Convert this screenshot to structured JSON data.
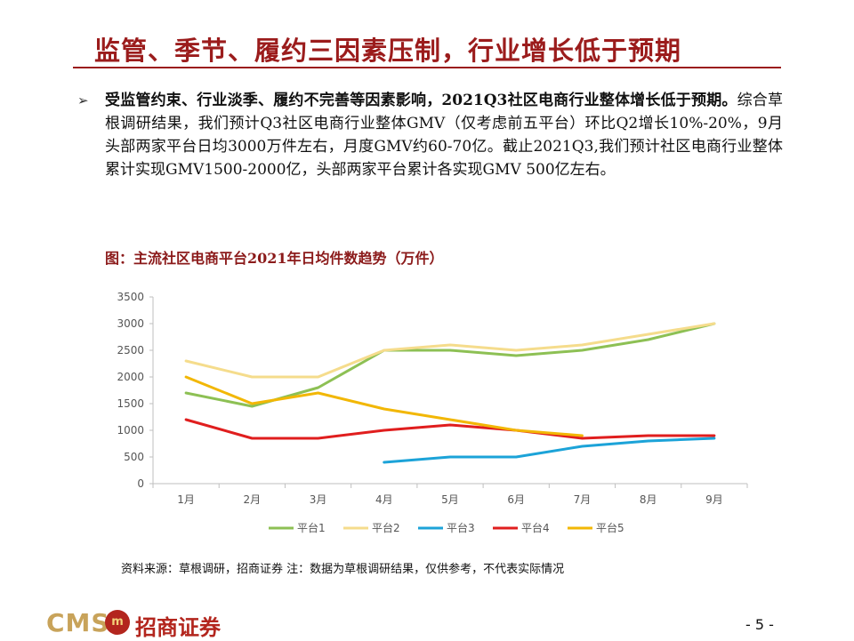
{
  "slide": {
    "title": "监管、季节、履约三因素压制，行业增长低于预期",
    "bullet_bold": "受监管约束、行业淡季、履约不完善等因素影响，2021Q3社区电商行业整体增长低于预期。",
    "bullet_rest": "综合草根调研结果，我们预计Q3社区电商行业整体GMV（仅考虑前五平台）环比Q2增长10%-20%，9月头部两家平台日均3000万件左右，月度GMV约60-70亿。截止2021Q3,我们预计社区电商行业整体累计实现GMV1500-2000亿，头部两家平台累计各实现GMV 500亿左右。",
    "figure_title": "图：主流社区电商平台2021年日均件数趋势（万件）",
    "source": "资料来源：草根调研，招商证券 注：数据为草根调研结果，仅供参考，不代表实际情况",
    "page_number": "- 5 -"
  },
  "logo": {
    "en": "CMS",
    "seal": "m",
    "cn": "招商证券"
  },
  "chart_data": {
    "type": "line",
    "title": "",
    "xlabel": "",
    "ylabel": "",
    "categories": [
      "1月",
      "2月",
      "3月",
      "4月",
      "5月",
      "6月",
      "7月",
      "8月",
      "9月"
    ],
    "ylim": [
      0,
      3500
    ],
    "yticks": [
      0,
      500,
      1000,
      1500,
      2000,
      2500,
      3000,
      3500
    ],
    "grid": false,
    "legend_position": "bottom",
    "series": [
      {
        "name": "平台1",
        "color": "#8dc054",
        "values": [
          1700,
          1450,
          1800,
          2500,
          2500,
          2400,
          2500,
          2700,
          3000
        ]
      },
      {
        "name": "平台2",
        "color": "#f5dc8c",
        "values": [
          2300,
          2000,
          2000,
          2500,
          2600,
          2500,
          2600,
          2800,
          3000
        ]
      },
      {
        "name": "平台3",
        "color": "#1ca3d8",
        "values": [
          null,
          null,
          null,
          400,
          500,
          500,
          700,
          800,
          850
        ]
      },
      {
        "name": "平台4",
        "color": "#e01e1e",
        "values": [
          1200,
          850,
          850,
          1000,
          1100,
          1000,
          850,
          900,
          900
        ]
      },
      {
        "name": "平台5",
        "color": "#f2b705",
        "values": [
          2000,
          1500,
          1700,
          1400,
          1200,
          1000,
          900,
          null,
          null
        ]
      }
    ]
  }
}
